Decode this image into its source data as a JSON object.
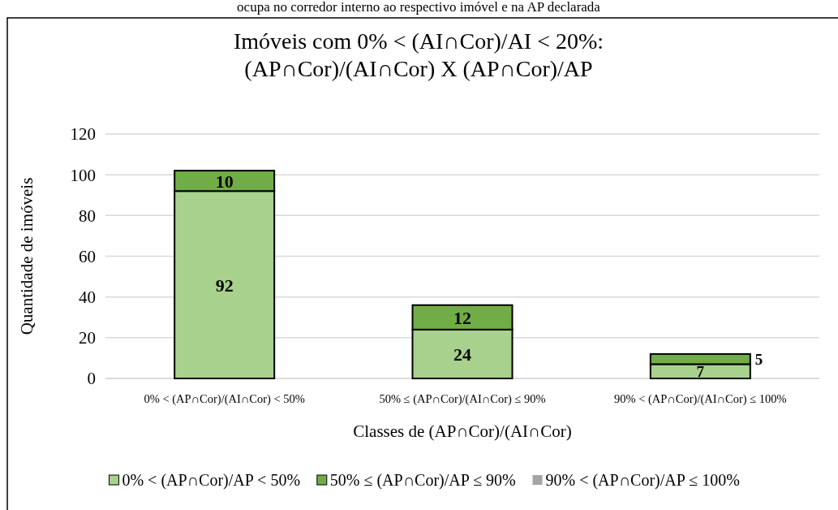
{
  "chart_data": {
    "type": "bar",
    "stacked": true,
    "title": "Imóveis com 0% < (AI∩Cor)/AI < 20%:\n(AP∩Cor)/(AI∩Cor) X (AP∩Cor)/AP",
    "annotations": [
      "ocupa no corredor interno ao respectivo imóvel e na AP declarada"
    ],
    "xlabel": "Classes de (AP∩Cor)/(AI∩Cor)",
    "ylabel": "Quantidade de imóveis",
    "categories": [
      "0% < (AP∩Cor)/(AI∩Cor)  < 50%",
      "50% ≤ (AP∩Cor)/(AI∩Cor)  ≤ 90%",
      "90% < (AP∩Cor)/(AI∩Cor)  ≤ 100%"
    ],
    "series": [
      {
        "name": "0% < (AP∩Cor)/AP < 50%",
        "color": "#a9d18e",
        "values": [
          92,
          24,
          7
        ]
      },
      {
        "name": "50% ≤ (AP∩Cor)/AP ≤ 90%",
        "color": "#70ad47",
        "values": [
          10,
          12,
          5
        ]
      },
      {
        "name": "90% < (AP∩Cor)/AP ≤ 100%",
        "color": "#a5a5a5",
        "values": [
          null,
          null,
          null
        ]
      }
    ],
    "ylim": [
      0,
      120
    ],
    "yticks": [
      0,
      20,
      40,
      60,
      80,
      100,
      120
    ],
    "grid": "y",
    "legend": "bottom",
    "data_labels": true
  }
}
